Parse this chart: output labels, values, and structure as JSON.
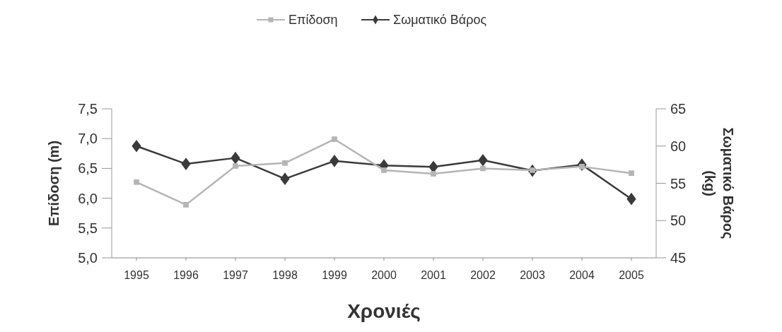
{
  "chart_data": {
    "type": "line",
    "xlabel": "Χρονιές",
    "ylabel": "Επίδοση (m)",
    "y2label": "Σωματικό Βάρος (kg)",
    "categories": [
      "1995",
      "1996",
      "1997",
      "1998",
      "1999",
      "2000",
      "2001",
      "2002",
      "2003",
      "2004",
      "2005"
    ],
    "series": [
      {
        "name": "Επίδοση",
        "color": "#b5b5b5",
        "marker": "square",
        "values": [
          6.27,
          5.89,
          6.54,
          6.59,
          6.99,
          6.47,
          6.41,
          6.5,
          6.47,
          6.53,
          6.42
        ]
      },
      {
        "name": "Σωματικό Βάρος",
        "color": "#3a3a3a",
        "marker": "diamond",
        "axis": "y2",
        "values": [
          60,
          57.6,
          58.4,
          55.6,
          58,
          57.4,
          57.2,
          58.1,
          56.7,
          57.5,
          52.9
        ]
      }
    ],
    "ylim": [
      5,
      7.5
    ],
    "yticks": [
      {
        "value": 5,
        "label": "5,0"
      },
      {
        "value": 5.5,
        "label": "5,5"
      },
      {
        "value": 6,
        "label": "6,0"
      },
      {
        "value": 6.5,
        "label": "6,5"
      },
      {
        "value": 7,
        "label": "7,0"
      },
      {
        "value": 7.5,
        "label": "7,5"
      }
    ],
    "y2lim": [
      45,
      65
    ],
    "y2ticks": [
      45,
      50,
      55,
      60,
      65
    ],
    "legend": "top",
    "grid": false,
    "line_style": "solid"
  }
}
